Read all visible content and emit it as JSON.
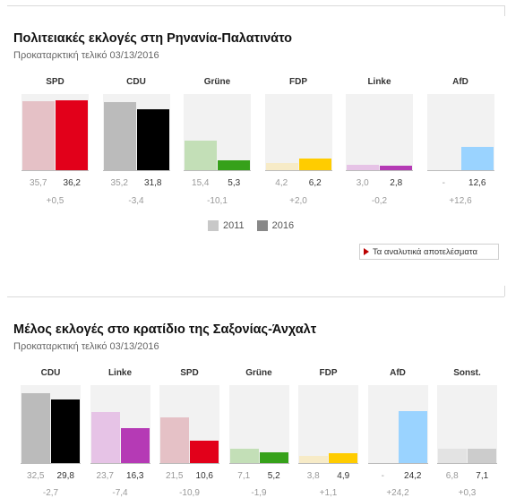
{
  "colors": {
    "SPD": "#e2001a",
    "CDU": "#000000",
    "Grüne": "#36a11a",
    "FDP": "#ffcc00",
    "Linke": "#b53ab5",
    "AfD": "#9ad3ff",
    "Sonst.": "#cccccc",
    "SPD_old": "#e5c1c6",
    "CDU_old": "#bbbbbb",
    "Grüne_old": "#c3dfb7",
    "FDP_old": "#f7ebc7",
    "Linke_old": "#e6c3e6",
    "AfD_old": "#dceffc",
    "Sonst._old": "#e3e3e3"
  },
  "legend": {
    "label_2011": "2011",
    "label_2016": "2016",
    "color_2011": "#c8c8c8",
    "color_2016": "#888888"
  },
  "details_button": {
    "label": "Τα αναλυτικά αποτελέσματα"
  },
  "chart_data": [
    {
      "type": "bar",
      "title": "Πολιτειακές εκλογές στη Ρηνανία-Παλατινάτο",
      "subtitle": "Προκαταρκτική τελικό 03/13/2016",
      "categories": [
        "SPD",
        "CDU",
        "Grüne",
        "FDP",
        "Linke",
        "AfD"
      ],
      "series": [
        {
          "name": "2011",
          "values": [
            35.7,
            35.2,
            15.4,
            4.2,
            3.0,
            null
          ],
          "labels": [
            "35,7",
            "35,2",
            "15,4",
            "4,2",
            "3,0",
            "-"
          ]
        },
        {
          "name": "2016",
          "values": [
            36.2,
            31.8,
            5.3,
            6.2,
            2.8,
            12.6
          ],
          "labels": [
            "36,2",
            "31,8",
            "5,3",
            "6,2",
            "2,8",
            "12,6"
          ]
        }
      ],
      "diffs": [
        "+0,5",
        "-3,4",
        "-10,1",
        "+2,0",
        "-0,2",
        "+12,6"
      ],
      "ylim": [
        0,
        38
      ]
    },
    {
      "type": "bar",
      "title": "Μέλος εκλογές στο κρατίδιο της Σαξονίας-Άνχαλτ",
      "subtitle": "Προκαταρκτική τελικό 03/13/2016",
      "categories": [
        "CDU",
        "Linke",
        "SPD",
        "Grüne",
        "FDP",
        "AfD",
        "Sonst."
      ],
      "series": [
        {
          "name": "2011",
          "values": [
            32.5,
            23.7,
            21.5,
            7.1,
            3.8,
            null,
            6.8
          ],
          "labels": [
            "32,5",
            "23,7",
            "21,5",
            "7,1",
            "3,8",
            "-",
            "6,8"
          ]
        },
        {
          "name": "2016",
          "values": [
            29.8,
            16.3,
            10.6,
            5.2,
            4.9,
            24.2,
            7.1
          ],
          "labels": [
            "29,8",
            "16,3",
            "10,6",
            "5,2",
            "4,9",
            "24,2",
            "7,1"
          ]
        }
      ],
      "diffs": [
        "-2,7",
        "-7,4",
        "-10,9",
        "-1,9",
        "+1,1",
        "+24,2",
        "+0,3"
      ],
      "ylim": [
        0,
        34
      ]
    }
  ]
}
